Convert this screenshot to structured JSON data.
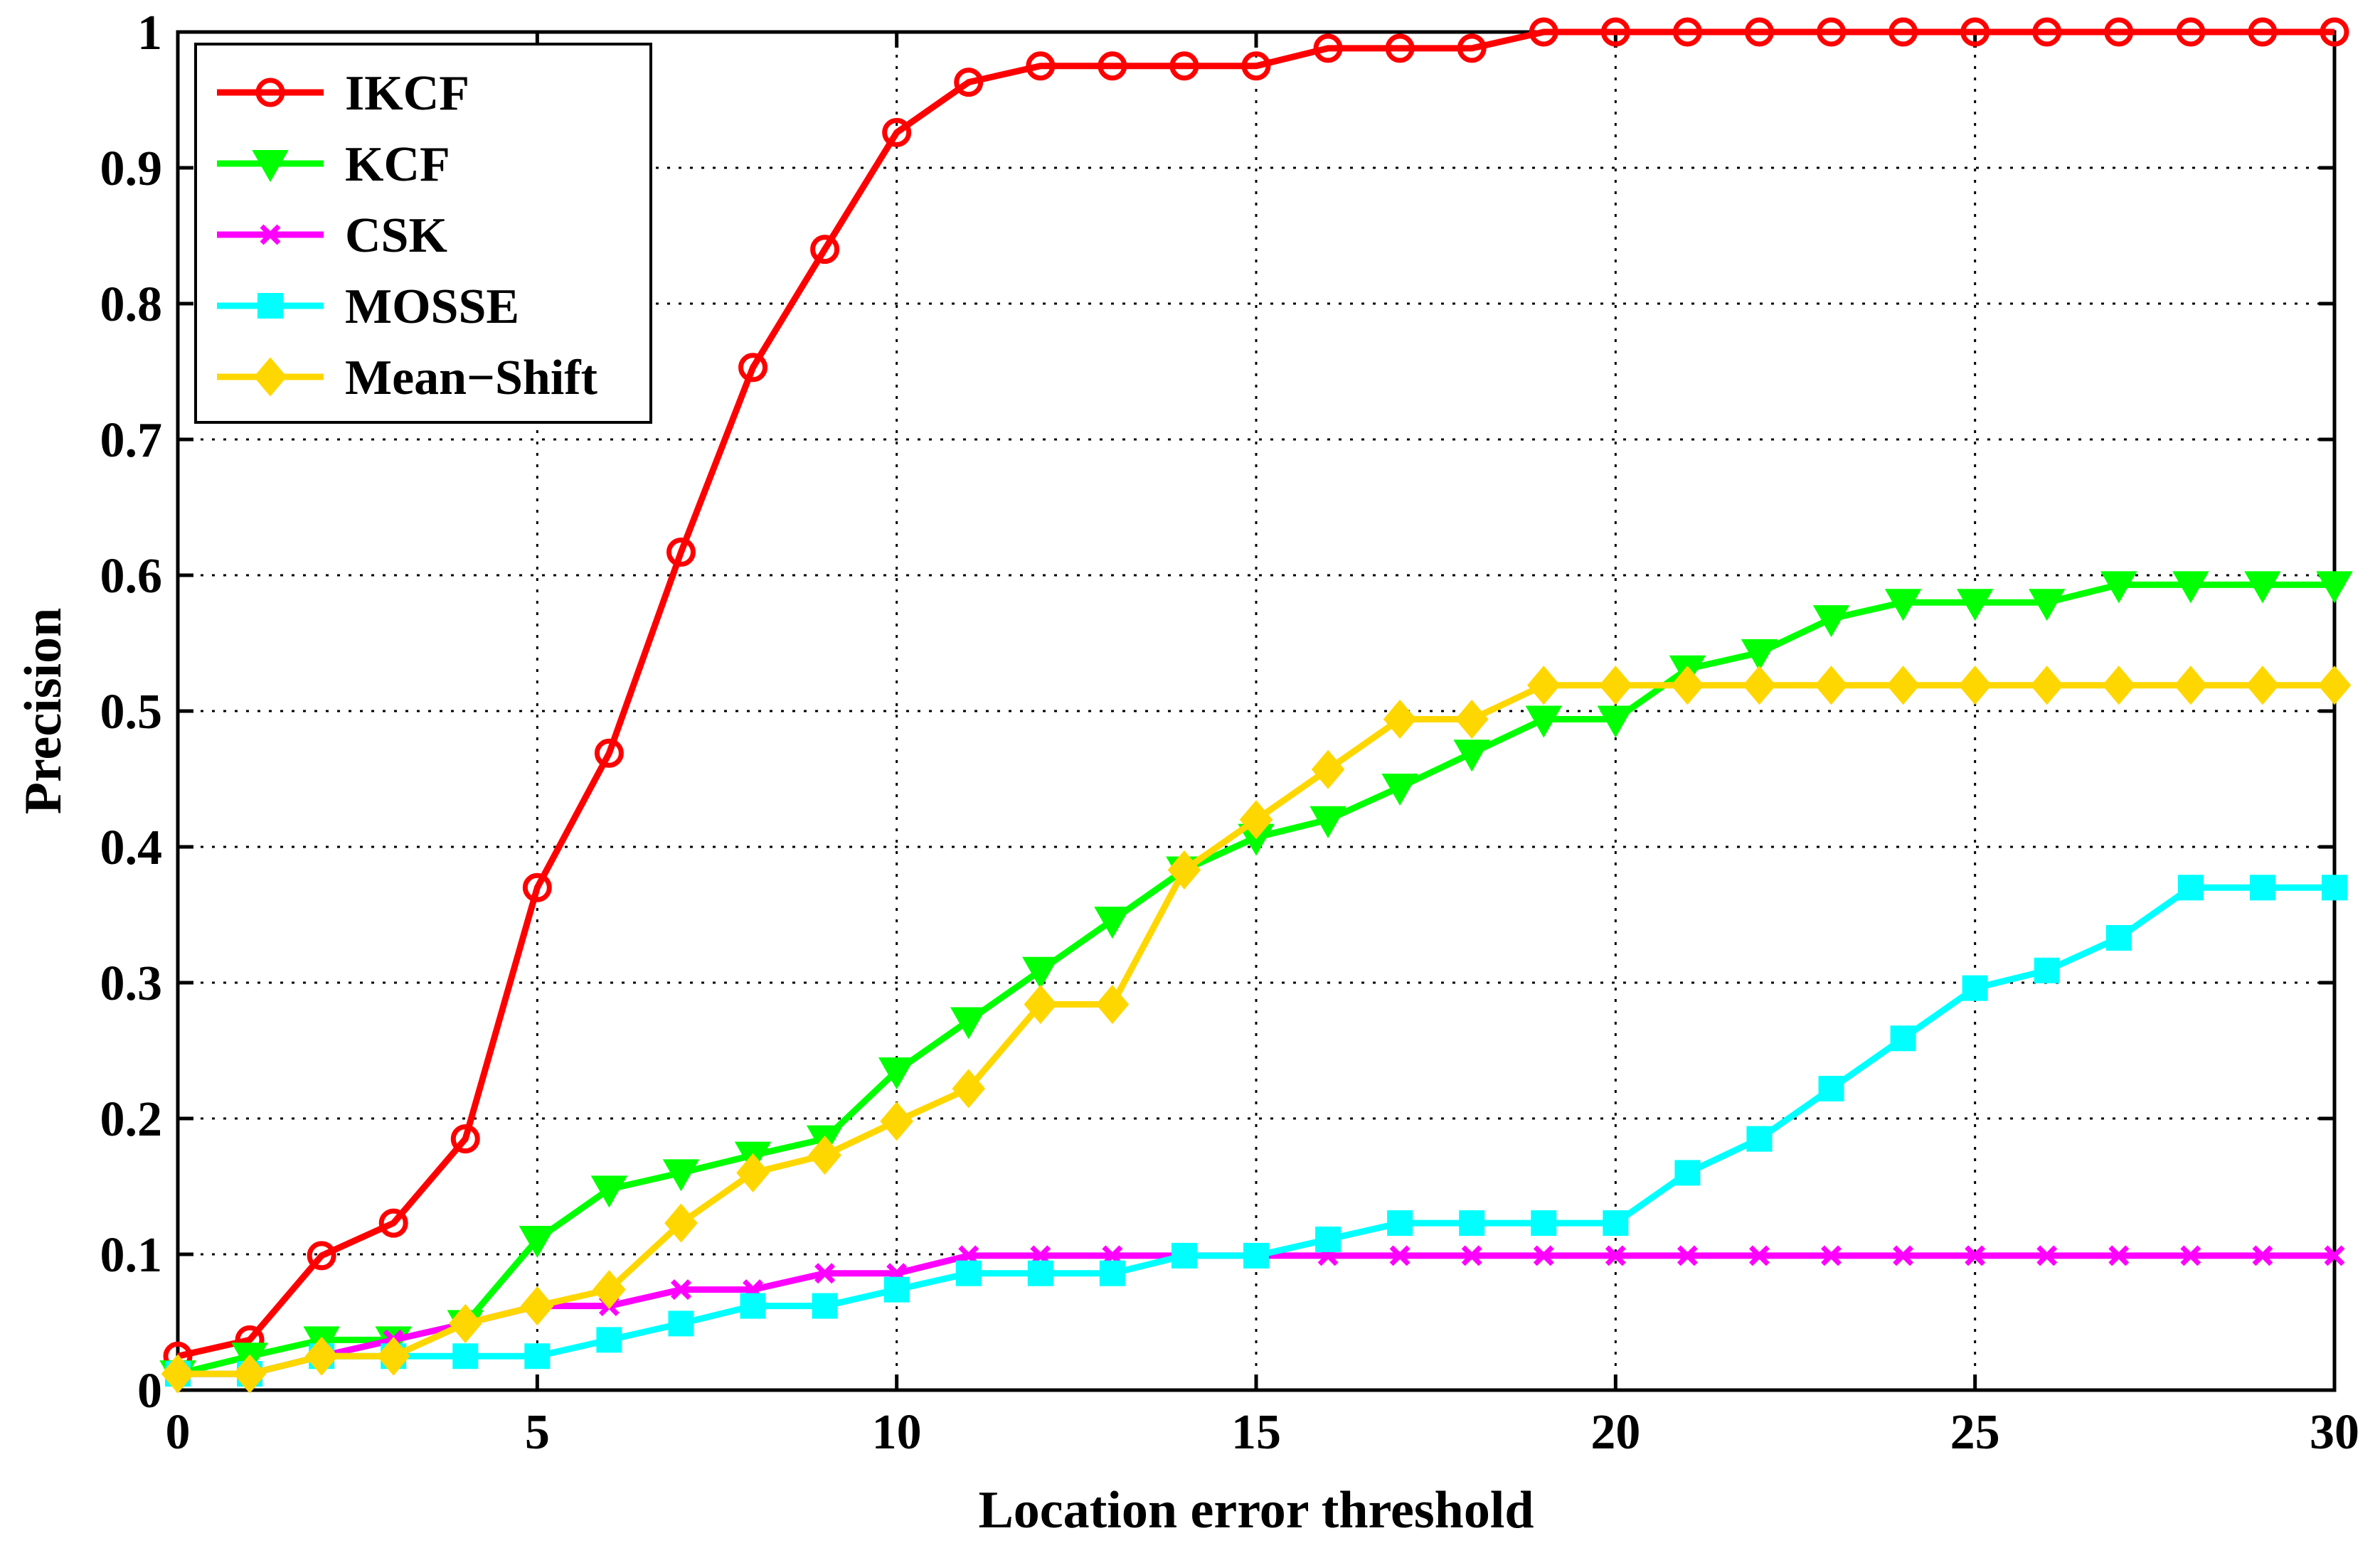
{
  "chart_data": {
    "type": "line",
    "title": "",
    "xlabel": "Location error threshold",
    "ylabel": "Precision",
    "xlim": [
      0,
      30
    ],
    "ylim": [
      0,
      1
    ],
    "xticks": [
      "0",
      "5",
      "10",
      "15",
      "20",
      "25",
      "30"
    ],
    "yticks": [
      "0",
      "0.1",
      "0.2",
      "0.3",
      "0.4",
      "0.5",
      "0.6",
      "0.7",
      "0.8",
      "0.9",
      "1"
    ],
    "grid": true,
    "legend_position": "top-left",
    "x": [
      0,
      1,
      2,
      3,
      4,
      5,
      6,
      7,
      8,
      9,
      10,
      11,
      12,
      13,
      14,
      15,
      16,
      17,
      18,
      19,
      20,
      21,
      22,
      23,
      24,
      25,
      26,
      27,
      28,
      29,
      30
    ],
    "series": [
      {
        "name": "IKCF",
        "color": "#ff0000",
        "marker": "circle",
        "values": [
          0.025,
          0.037,
          0.099,
          0.123,
          0.185,
          0.37,
          0.469,
          0.617,
          0.753,
          0.84,
          0.926,
          0.963,
          0.975,
          0.975,
          0.975,
          0.975,
          0.988,
          0.988,
          0.988,
          1.0,
          1.0,
          1.0,
          1.0,
          1.0,
          1.0,
          1.0,
          1.0,
          1.0,
          1.0,
          1.0,
          1.0
        ]
      },
      {
        "name": "KCF",
        "color": "#00ff00",
        "marker": "triangle-down",
        "values": [
          0.012,
          0.025,
          0.037,
          0.037,
          0.049,
          0.111,
          0.148,
          0.16,
          0.173,
          0.185,
          0.235,
          0.272,
          0.309,
          0.346,
          0.383,
          0.407,
          0.42,
          0.444,
          0.469,
          0.494,
          0.494,
          0.531,
          0.543,
          0.568,
          0.58,
          0.58,
          0.58,
          0.593,
          0.593,
          0.593,
          0.593
        ]
      },
      {
        "name": "CSK",
        "color": "#ff00ff",
        "marker": "x",
        "values": [
          0.012,
          0.012,
          0.025,
          0.037,
          0.049,
          0.062,
          0.062,
          0.074,
          0.074,
          0.086,
          0.086,
          0.099,
          0.099,
          0.099,
          0.099,
          0.099,
          0.099,
          0.099,
          0.099,
          0.099,
          0.099,
          0.099,
          0.099,
          0.099,
          0.099,
          0.099,
          0.099,
          0.099,
          0.099,
          0.099,
          0.099
        ]
      },
      {
        "name": "MOSSE",
        "color": "#00ffff",
        "marker": "square",
        "values": [
          0.012,
          0.012,
          0.025,
          0.025,
          0.025,
          0.025,
          0.037,
          0.049,
          0.062,
          0.062,
          0.074,
          0.086,
          0.086,
          0.086,
          0.099,
          0.099,
          0.111,
          0.123,
          0.123,
          0.123,
          0.123,
          0.16,
          0.185,
          0.222,
          0.259,
          0.296,
          0.309,
          0.333,
          0.37,
          0.37,
          0.37
        ]
      },
      {
        "name": "Mean-Shift",
        "display_name": "Mean−Shift",
        "color": "#ffd700",
        "marker": "diamond",
        "values": [
          0.012,
          0.012,
          0.025,
          0.025,
          0.049,
          0.062,
          0.074,
          0.123,
          0.16,
          0.173,
          0.198,
          0.222,
          0.284,
          0.284,
          0.383,
          0.42,
          0.457,
          0.494,
          0.494,
          0.519,
          0.519,
          0.519,
          0.519,
          0.519,
          0.519,
          0.519,
          0.519,
          0.519,
          0.519,
          0.519,
          0.519
        ]
      }
    ]
  }
}
